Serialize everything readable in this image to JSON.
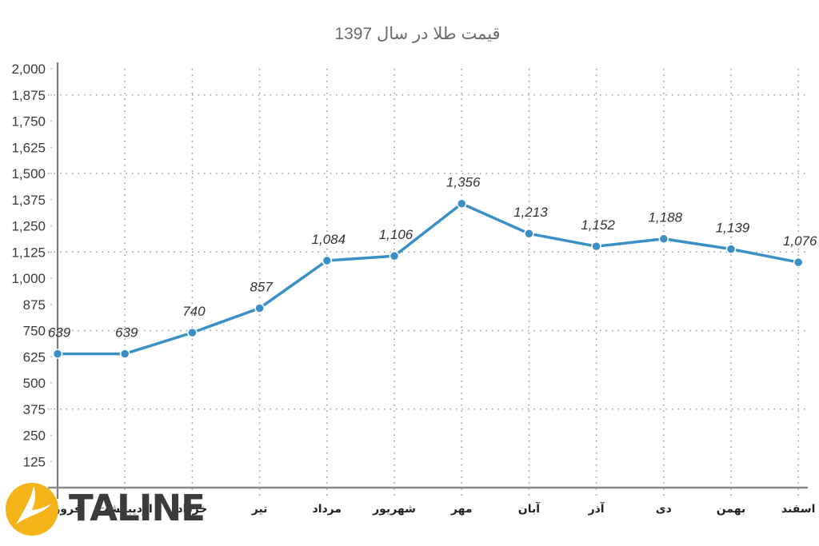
{
  "chart_data": {
    "type": "line",
    "title": "قیمت طلا در سال 1397",
    "xlabel": "",
    "ylabel": "",
    "categories": [
      "فروردین",
      "اردیبهشت",
      "خرداد",
      "تیر",
      "مرداد",
      "شهریور",
      "مهر",
      "آبان",
      "آذر",
      "دی",
      "بهمن",
      "اسفند"
    ],
    "series": [
      {
        "name": "قیمت طلا",
        "values": [
          639,
          639,
          740,
          857,
          1084,
          1106,
          1356,
          1213,
          1152,
          1188,
          1139,
          1076
        ],
        "color": "#3a8fc6"
      }
    ],
    "data_labels": [
      "639",
      "639",
      "740",
      "857",
      "1,084",
      "1,106",
      "1,356",
      "1,213",
      "1,152",
      "1,188",
      "1,139",
      "1,076"
    ],
    "ylim": [
      0,
      2000
    ],
    "yticks": [
      "2,000",
      "1,875",
      "1,750",
      "1,625",
      "1,500",
      "1,375",
      "1,250",
      "1,125",
      "1,000",
      "875",
      "750",
      "625",
      "500",
      "375",
      "250",
      "125"
    ],
    "ytick_values": [
      2000,
      1875,
      1750,
      1625,
      1500,
      1375,
      1250,
      1125,
      1000,
      875,
      750,
      625,
      500,
      375,
      250,
      125
    ],
    "grid": {
      "horizontal_at": [
        1875,
        1500,
        1125,
        750,
        375
      ],
      "vertical": true,
      "style": "dotted"
    },
    "legend": null
  },
  "watermark": {
    "text": "TALINE",
    "logo_color": "#f4b41a",
    "text_color": "#3b3b3b"
  }
}
